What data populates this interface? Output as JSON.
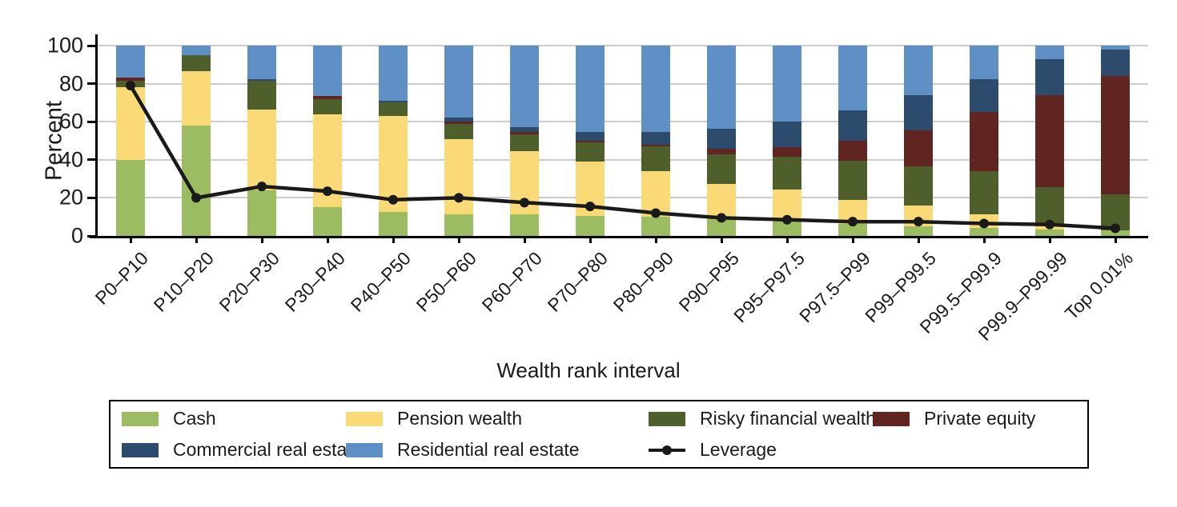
{
  "chart_data": {
    "type": "bar",
    "stacked": true,
    "title": "",
    "ylabel": "Percent",
    "xlabel": "Wealth rank interval",
    "ylim": [
      0,
      100
    ],
    "yticks": [
      0,
      20,
      40,
      60,
      80,
      100
    ],
    "grid": true,
    "legend_position": "bottom",
    "categories": [
      "P0–P10",
      "P10–P20",
      "P20–P30",
      "P30–P40",
      "P40–P50",
      "P50–P60",
      "P60–P70",
      "P70–P80",
      "P80–P90",
      "P90–P95",
      "P95–P97.5",
      "P97.5–P99",
      "P99–P99.5",
      "P99.5–P99.9",
      "P99.9–P99.99",
      "Top 0.01%"
    ],
    "series": [
      {
        "name": "Cash",
        "color": "#9CBC62",
        "values": [
          40,
          58,
          24,
          15,
          12.5,
          11.5,
          11.5,
          10.5,
          10,
          9.5,
          8,
          6.5,
          5,
          4,
          3.5,
          3
        ]
      },
      {
        "name": "Pension wealth",
        "color": "#FAD977",
        "values": [
          38,
          28.5,
          42.5,
          49,
          50.5,
          39.5,
          33,
          28.5,
          24,
          18,
          16.5,
          12.5,
          11,
          7.5,
          1.5,
          0
        ]
      },
      {
        "name": "Risky financial wealth",
        "color": "#4E5F2B",
        "values": [
          3.5,
          8.5,
          15,
          8,
          7,
          8,
          9,
          10,
          13,
          15.5,
          17,
          20.5,
          20.5,
          22.5,
          20.5,
          19
        ]
      },
      {
        "name": "Private equity",
        "color": "#602521",
        "values": [
          1.5,
          0,
          0,
          1.5,
          0,
          1,
          1,
          1,
          1,
          3,
          5,
          10.5,
          19,
          31,
          48.5,
          62
        ]
      },
      {
        "name": "Commercial real estate",
        "color": "#2C4B6D",
        "values": [
          0,
          0,
          1,
          0,
          1,
          2,
          2.5,
          4.5,
          6.5,
          10.5,
          13.5,
          16,
          18.5,
          17.5,
          19,
          14
        ]
      },
      {
        "name": "Residential real estate",
        "color": "#5E90C6",
        "values": [
          17,
          5,
          17.5,
          26.5,
          29,
          38,
          43,
          45.5,
          45.5,
          43.5,
          40,
          34,
          26,
          17.5,
          7,
          2
        ]
      }
    ],
    "line_series": {
      "name": "Leverage",
      "color": "#1a1a1a",
      "values": [
        79,
        20,
        26,
        23.5,
        19,
        20,
        17.5,
        15.5,
        12,
        9.5,
        8.5,
        7.5,
        7.5,
        6.5,
        6,
        4
      ]
    },
    "legend_order": [
      "Cash",
      "Pension wealth",
      "Risky financial wealth",
      "Private equity",
      "Commercial real estate",
      "Residential real estate",
      "Leverage"
    ]
  }
}
